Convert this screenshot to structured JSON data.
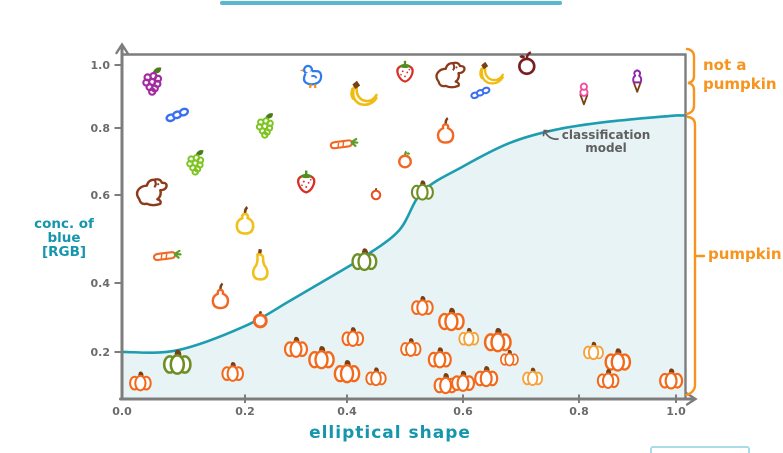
{
  "colors": {
    "curve_teal": "#1d9db0",
    "region_fill": "#e8f3f5",
    "axis_gray": "#7d7d7d",
    "tick_text_gray": "#6b6b6b",
    "accent_orange": "#f7941d",
    "annotation_gray": "#5f5f5f",
    "teal_text": "#1596ac"
  },
  "chart_data": {
    "type": "scatter",
    "xlabel": "elliptical shape",
    "ylabel": "conc. of blue [RGB]",
    "ylabel_lines": [
      "conc. of",
      "blue",
      "[RGB]"
    ],
    "x_ticks": [
      "0.0",
      "0.2",
      "0.4",
      "0.6",
      "0.8",
      "1.0"
    ],
    "y_ticks": [
      "1.0",
      "0.8",
      "0.6",
      "0.4",
      "0.2"
    ],
    "xlim": [
      0,
      1
    ],
    "ylim": [
      0,
      1
    ],
    "grid": false,
    "annotation_lines": [
      "classification",
      "model"
    ],
    "region_top_lines": [
      "not a",
      "pumpkin"
    ],
    "region_bottom": "pumpkin",
    "curve": {
      "name": "classification model",
      "points": [
        [
          0,
          0.2
        ],
        [
          0.09,
          0.205
        ],
        [
          0.2,
          0.275
        ],
        [
          0.29,
          0.35
        ],
        [
          0.37,
          0.415
        ],
        [
          0.43,
          0.46
        ],
        [
          0.49,
          0.52
        ],
        [
          0.53,
          0.61
        ],
        [
          0.6,
          0.685
        ],
        [
          0.68,
          0.755
        ],
        [
          0.76,
          0.795
        ],
        [
          0.86,
          0.82
        ],
        [
          1.0,
          0.84
        ]
      ]
    },
    "points": [
      {
        "x": 0.05,
        "y": 0.94,
        "icon": "grapes-purple"
      },
      {
        "x": 0.09,
        "y": 0.84,
        "icon": "blueberries"
      },
      {
        "x": 0.24,
        "y": 0.8,
        "icon": "grapes-green",
        "s": 0.9
      },
      {
        "x": 0.12,
        "y": 0.69,
        "icon": "grapes-green",
        "s": 0.9
      },
      {
        "x": 0.05,
        "y": 0.61,
        "icon": "dog"
      },
      {
        "x": 0.33,
        "y": 0.96,
        "icon": "duck"
      },
      {
        "x": 0.43,
        "y": 0.9,
        "icon": "bananas"
      },
      {
        "x": 0.39,
        "y": 0.75,
        "icon": "carrot"
      },
      {
        "x": 0.32,
        "y": 0.64,
        "icon": "strawberry"
      },
      {
        "x": 0.45,
        "y": 0.6,
        "icon": "mini-orange"
      },
      {
        "x": 0.5,
        "y": 0.98,
        "icon": "strawberry",
        "s": 0.95
      },
      {
        "x": 0.58,
        "y": 0.97,
        "icon": "dog",
        "s": 0.95
      },
      {
        "x": 0.65,
        "y": 0.965,
        "icon": "bananas",
        "s": 0.9
      },
      {
        "x": 0.63,
        "y": 0.91,
        "icon": "blueberries",
        "s": 0.85
      },
      {
        "x": 0.71,
        "y": 1.0,
        "icon": "apple"
      },
      {
        "x": 0.81,
        "y": 0.91,
        "icon": "icecream-pink"
      },
      {
        "x": 0.92,
        "y": 0.95,
        "icon": "icecream-purple"
      },
      {
        "x": 0.57,
        "y": 0.79,
        "icon": "pear-orange"
      },
      {
        "x": 0.5,
        "y": 0.7,
        "icon": "clementine"
      },
      {
        "x": 0.53,
        "y": 0.61,
        "icon": "pumpkin-green",
        "s": 0.8
      },
      {
        "x": 0.07,
        "y": 0.46,
        "icon": "carrot"
      },
      {
        "x": 0.2,
        "y": 0.54,
        "icon": "pear-yellow"
      },
      {
        "x": 0.23,
        "y": 0.44,
        "icon": "gourd-yellow"
      },
      {
        "x": 0.16,
        "y": 0.36,
        "icon": "pear-orange"
      },
      {
        "x": 0.23,
        "y": 0.29,
        "icon": "tomato-ring"
      },
      {
        "x": 0.09,
        "y": 0.15,
        "icon": "pumpkin-green"
      },
      {
        "x": 0.03,
        "y": 0.07,
        "icon": "pumpkin",
        "s": 0.85
      },
      {
        "x": 0.18,
        "y": 0.11,
        "icon": "pumpkin",
        "s": 0.85
      },
      {
        "x": 0.3,
        "y": 0.21,
        "icon": "pumpkin",
        "s": 0.9
      },
      {
        "x": 0.35,
        "y": 0.17,
        "icon": "pumpkin"
      },
      {
        "x": 0.41,
        "y": 0.24,
        "icon": "pumpkin",
        "s": 0.85
      },
      {
        "x": 0.4,
        "y": 0.11,
        "icon": "pumpkin"
      },
      {
        "x": 0.45,
        "y": 0.09,
        "icon": "pumpkin",
        "s": 0.8
      },
      {
        "x": 0.43,
        "y": 0.45,
        "icon": "pumpkin-green",
        "s": 0.9
      },
      {
        "x": 0.53,
        "y": 0.33,
        "icon": "pumpkin",
        "s": 0.85
      },
      {
        "x": 0.58,
        "y": 0.29,
        "icon": "pumpkin"
      },
      {
        "x": 0.61,
        "y": 0.24,
        "icon": "pumpkin-yellow",
        "s": 0.85
      },
      {
        "x": 0.66,
        "y": 0.23,
        "icon": "pumpkin",
        "s": 1.05
      },
      {
        "x": 0.68,
        "y": 0.17,
        "icon": "pumpkin",
        "s": 0.7
      },
      {
        "x": 0.51,
        "y": 0.21,
        "icon": "pumpkin",
        "s": 0.8
      },
      {
        "x": 0.56,
        "y": 0.17,
        "icon": "pumpkin",
        "s": 0.9
      },
      {
        "x": 0.57,
        "y": 0.06,
        "icon": "pumpkin",
        "s": 0.9
      },
      {
        "x": 0.6,
        "y": 0.07,
        "icon": "pumpkin",
        "s": 0.9
      },
      {
        "x": 0.64,
        "y": 0.09,
        "icon": "pumpkin",
        "s": 0.9
      },
      {
        "x": 0.72,
        "y": 0.09,
        "icon": "pumpkin-yellow",
        "s": 0.85
      },
      {
        "x": 0.83,
        "y": 0.2,
        "icon": "pumpkin-yellow",
        "s": 0.85
      },
      {
        "x": 0.88,
        "y": 0.16,
        "icon": "pumpkin"
      },
      {
        "x": 0.86,
        "y": 0.08,
        "icon": "pumpkin",
        "s": 0.85
      },
      {
        "x": 0.99,
        "y": 0.08,
        "icon": "pumpkin",
        "s": 0.9
      }
    ]
  }
}
